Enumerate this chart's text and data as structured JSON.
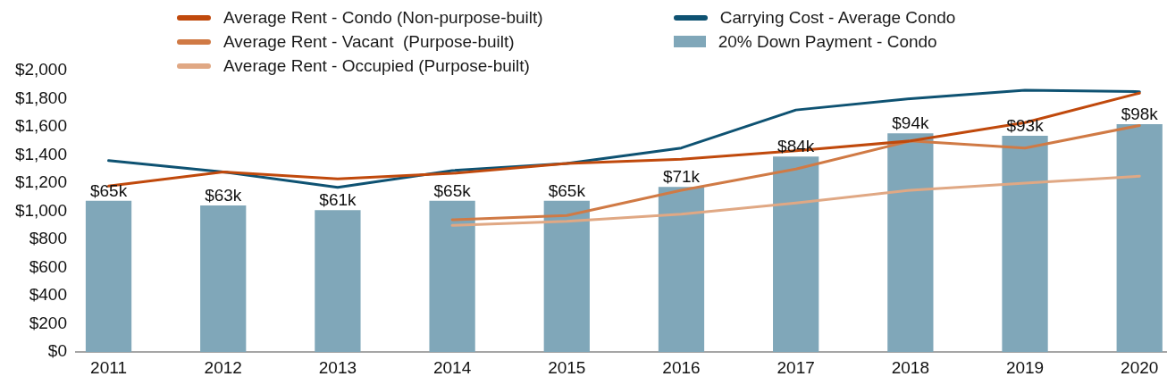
{
  "chart_data": {
    "type": "bar",
    "categories": [
      "2011",
      "2012",
      "2013",
      "2014",
      "2015",
      "2016",
      "2017",
      "2018",
      "2019",
      "2020"
    ],
    "series": [
      {
        "name": "Average Rent - Condo (Non-purpose-built)",
        "type": "line",
        "color": "#c0490c",
        "values": [
          1180,
          1280,
          1230,
          1270,
          1340,
          1370,
          1430,
          1500,
          1630,
          1840
        ]
      },
      {
        "name": "Average Rent - Vacant  (Purpose-built)",
        "type": "line",
        "color": "#d07a45",
        "values": [
          null,
          null,
          null,
          940,
          970,
          1150,
          1300,
          1500,
          1450,
          1610
        ]
      },
      {
        "name": "Average Rent - Occupied (Purpose-built)",
        "type": "line",
        "color": "#e0a884",
        "values": [
          null,
          null,
          null,
          900,
          930,
          980,
          1060,
          1150,
          1200,
          1250
        ]
      },
      {
        "name": "Carrying Cost - Average Condo",
        "type": "line",
        "color": "#0e5272",
        "values": [
          1360,
          1280,
          1170,
          1290,
          1340,
          1450,
          1720,
          1800,
          1860,
          1850
        ]
      },
      {
        "name": "20% Down Payment - Condo",
        "axis": "y2",
        "color": "#80a7b9",
        "values": [
          65,
          63,
          61,
          65,
          65,
          71,
          84,
          94,
          93,
          98
        ],
        "value_labels": [
          "$65k",
          "$63k",
          "$61k",
          "$65k",
          "$65k",
          "$71k",
          "$84k",
          "$94k",
          "$93k",
          "$98k"
        ]
      }
    ],
    "ylim": [
      0,
      2000
    ],
    "yticks": [
      {
        "value": 0,
        "label": "$0"
      },
      {
        "value": 200,
        "label": "$200"
      },
      {
        "value": 400,
        "label": "$400"
      },
      {
        "value": 600,
        "label": "$600"
      },
      {
        "value": 800,
        "label": "$800"
      },
      {
        "value": 1000,
        "label": "$1,000"
      },
      {
        "value": 1200,
        "label": "$1,200"
      },
      {
        "value": 1400,
        "label": "$1,400"
      },
      {
        "value": 1600,
        "label": "$1,600"
      },
      {
        "value": 1800,
        "label": "$1,800"
      },
      {
        "value": 2000,
        "label": "$2,000"
      }
    ],
    "legend": "top",
    "grid": false,
    "marker": "none"
  }
}
